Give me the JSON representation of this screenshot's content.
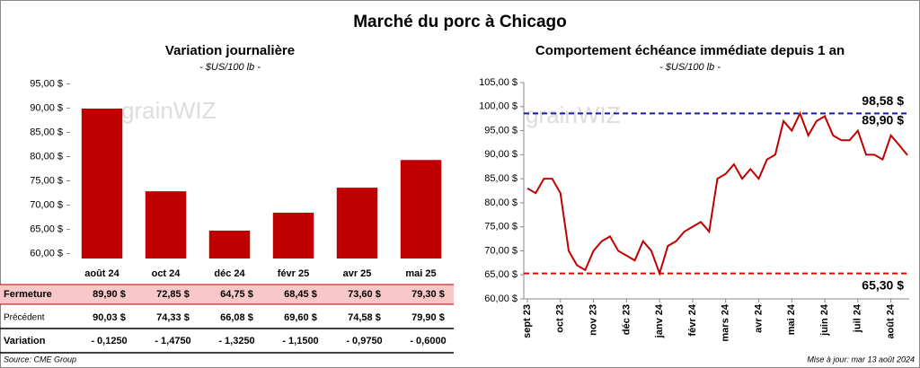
{
  "title": "Marché du porc à Chicago",
  "chart_data": [
    {
      "type": "bar",
      "title": "Variation journalière",
      "subtitle": "- $US/100 lb -",
      "color": "#c00000",
      "categories": [
        "août 24",
        "oct 24",
        "déc 24",
        "févr 25",
        "avr 25",
        "mai 25"
      ],
      "values": [
        89.9,
        72.85,
        64.75,
        68.45,
        73.6,
        79.3
      ],
      "ylim": [
        59,
        96
      ],
      "yticks": [
        {
          "value": 60,
          "label": "60,00 $"
        },
        {
          "value": 65,
          "label": "65,00 $"
        },
        {
          "value": 70,
          "label": "70,00 $"
        },
        {
          "value": 75,
          "label": "75,00 $"
        },
        {
          "value": 80,
          "label": "80,00 $"
        },
        {
          "value": 85,
          "label": "85,00 $"
        },
        {
          "value": 90,
          "label": "90,00 $"
        },
        {
          "value": 95,
          "label": "95,00 $"
        }
      ],
      "watermark": "grainWIZ"
    },
    {
      "type": "line",
      "title": "Comportement  échéance immédiate depuis 1 an",
      "subtitle": "- $US/100 lb -",
      "categories": [
        "sept 23",
        null,
        null,
        null,
        "oct 23",
        null,
        null,
        null,
        "nov 23",
        null,
        null,
        null,
        "déc 23",
        null,
        null,
        null,
        "janv 24",
        null,
        null,
        null,
        "févr 24",
        null,
        null,
        null,
        "mars 24",
        null,
        null,
        null,
        "avr 24",
        null,
        null,
        null,
        "mai 24",
        null,
        null,
        null,
        "juin 24",
        null,
        null,
        null,
        "juil 24",
        null,
        null,
        null,
        "août 24",
        null,
        null
      ],
      "series": [
        {
          "color": "#c00000",
          "values": [
            83,
            82,
            85,
            85,
            82,
            70,
            67,
            66,
            70,
            72,
            73,
            70,
            69,
            68,
            72,
            70,
            65.3,
            71,
            72,
            74,
            75,
            76,
            74,
            85,
            86,
            88,
            85,
            87,
            85,
            89,
            90,
            97,
            95,
            98.58,
            94,
            97,
            98,
            94,
            93,
            93,
            95,
            90,
            90,
            89,
            94,
            92,
            89.9
          ]
        }
      ],
      "ylim": [
        60,
        105
      ],
      "yticks": [
        {
          "value": 60,
          "label": "60,00 $"
        },
        {
          "value": 65,
          "label": "65,00 $"
        },
        {
          "value": 70,
          "label": "70,00 $"
        },
        {
          "value": 75,
          "label": "75,00 $"
        },
        {
          "value": 80,
          "label": "80,00 $"
        },
        {
          "value": 85,
          "label": "85,00 $"
        },
        {
          "value": 90,
          "label": "90,00 $"
        },
        {
          "value": 95,
          "label": "95,00 $"
        },
        {
          "value": 100,
          "label": "100,00 $"
        },
        {
          "value": 105,
          "label": "105,00 $"
        }
      ],
      "reference_lines": [
        {
          "value": 98.58,
          "label": "98,58 $",
          "color": "#1a1aa8"
        },
        {
          "value": 65.3,
          "label": "65,30 $",
          "color": "#e00000"
        }
      ],
      "last_label": {
        "value": 89.9,
        "label": "89,90 $"
      },
      "watermark": "grainWIZ"
    }
  ],
  "table": {
    "rows": [
      {
        "label": "Fermeture",
        "cells": [
          "89,90  $",
          "72,85  $",
          "64,75  $",
          "68,45  $",
          "73,60  $",
          "79,30  $"
        ]
      },
      {
        "label": "Précédent",
        "cells": [
          "90,03  $",
          "74,33  $",
          "66,08  $",
          "69,60  $",
          "74,58  $",
          "79,90  $"
        ]
      },
      {
        "label": "Variation",
        "cells": [
          "- 0,1250",
          "- 1,4750",
          "- 1,3250",
          "- 1,1500",
          "- 0,9750",
          "- 0,6000"
        ]
      }
    ]
  },
  "footer": {
    "source": "Source: CME Group",
    "updated": "Mise à jour: mar 13 août 2024"
  }
}
